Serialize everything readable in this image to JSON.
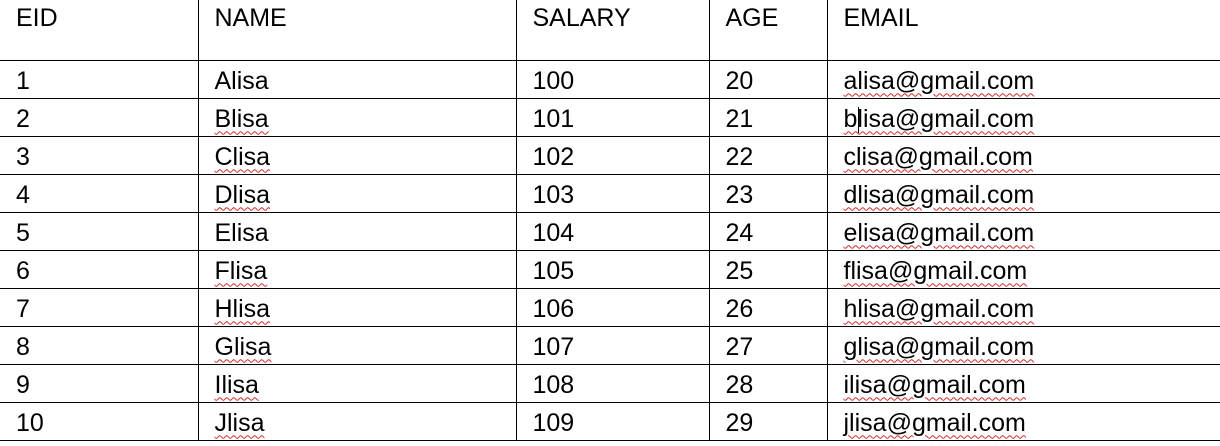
{
  "table": {
    "headers": [
      "EID",
      "NAME",
      "SALARY",
      "AGE",
      "EMAIL"
    ],
    "rows": [
      {
        "eid": "1",
        "name": "Alisa",
        "salary": "100",
        "age": "20",
        "email": "alisa@gmail.com"
      },
      {
        "eid": "2",
        "name": "Blisa",
        "salary": "101",
        "age": "21",
        "email": "blisa@gmail.com"
      },
      {
        "eid": "3",
        "name": "Clisa",
        "salary": "102",
        "age": "22",
        "email": "clisa@gmail.com"
      },
      {
        "eid": "4",
        "name": "Dlisa",
        "salary": "103",
        "age": "23",
        "email": "dlisa@gmail.com"
      },
      {
        "eid": "5",
        "name": "Elisa",
        "salary": "104",
        "age": "24",
        "email": "elisa@gmail.com"
      },
      {
        "eid": "6",
        "name": "Flisa",
        "salary": "105",
        "age": "25",
        "email": "flisa@gmail.com"
      },
      {
        "eid": "7",
        "name": "Hlisa",
        "salary": "106",
        "age": "26",
        "email": "hlisa@gmail.com"
      },
      {
        "eid": "8",
        "name": "Glisa",
        "salary": "107",
        "age": "27",
        "email": "glisa@gmail.com"
      },
      {
        "eid": "9",
        "name": "Ilisa",
        "salary": "108",
        "age": "28",
        "email": "ilisa@gmail.com"
      },
      {
        "eid": "10",
        "name": "Jlisa",
        "salary": "109",
        "age": "29",
        "email": "jlisa@gmail.com"
      }
    ]
  },
  "colors": {
    "border": "#000000",
    "spellcheck_underline": "#d42a2a"
  }
}
